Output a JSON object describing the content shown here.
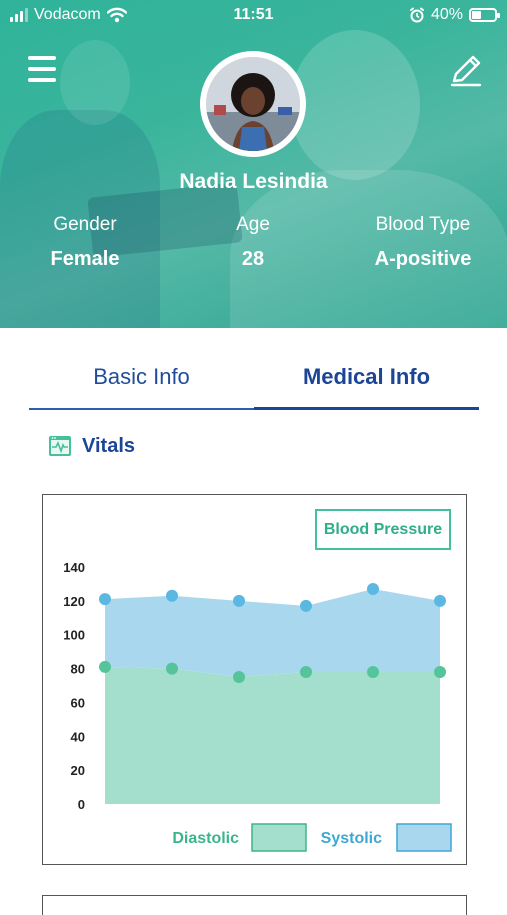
{
  "status_bar": {
    "carrier": "Vodacom",
    "time": "11:51",
    "battery": "40%",
    "battery_level": 0.4,
    "icons": [
      "signal-icon",
      "wifi-icon",
      "alarm-icon",
      "battery-icon"
    ]
  },
  "header": {
    "menu_icon": "hamburger-menu-icon",
    "edit_icon": "pencil-edit-icon",
    "avatar": "profile-photo",
    "name": "Nadia Lesindia",
    "stats": [
      {
        "label": "Gender",
        "value": "Female"
      },
      {
        "label": "Age",
        "value": "28"
      },
      {
        "label": "Blood Type",
        "value": "A-positive"
      }
    ]
  },
  "tabs": [
    {
      "label": "Basic Info",
      "active": false
    },
    {
      "label": "Medical Info",
      "active": true
    }
  ],
  "section": {
    "icon": "vitals-monitor-icon",
    "title": "Vitals"
  },
  "chart_card": {
    "button_label": "Blood Pressure"
  },
  "colors": {
    "brand_teal": "#35b39b",
    "primary_blue": "#1c4596",
    "diastolic": "#a3dfcc",
    "systolic": "#a9d8ee",
    "point": "#5bb8e0",
    "point_diastolic": "#55c49a"
  },
  "chart_data": {
    "type": "area",
    "x": [
      1,
      2,
      3,
      4,
      5,
      6
    ],
    "series": [
      {
        "name": "Diastolic",
        "values": [
          81,
          80,
          75,
          78,
          78,
          78
        ]
      },
      {
        "name": "Systolic",
        "values": [
          121,
          123,
          120,
          117,
          127,
          120
        ]
      }
    ],
    "yticks": [
      0,
      20,
      40,
      60,
      80,
      100,
      120,
      140
    ],
    "ylim": [
      0,
      140
    ],
    "title": "",
    "xlabel": "",
    "ylabel": "",
    "grid": false,
    "legend": "bottom-right"
  }
}
